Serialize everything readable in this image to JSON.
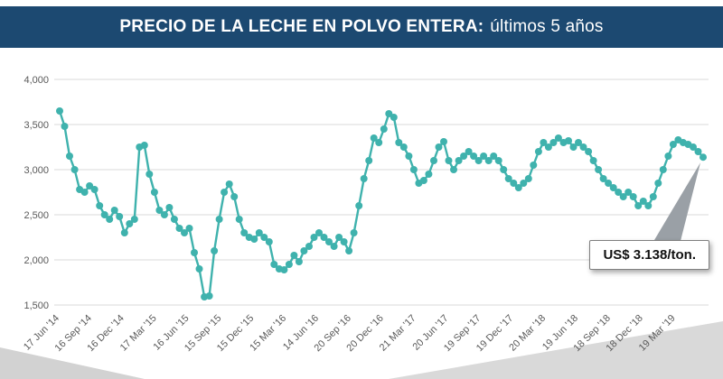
{
  "header": {
    "title_bold": "PRECIO DE LA LECHE EN POLVO ENTERA:",
    "title_light": "últimos 5 años"
  },
  "annotation": {
    "label": "US$ 3.138/ton."
  },
  "colors": {
    "banner": "#1c4971",
    "line": "#3fb2ad",
    "gridline": "#d9d9d9",
    "axis_text": "#595959",
    "arrow": "#9aa0a6"
  },
  "chart_data": {
    "type": "line",
    "title": "PRECIO DE LA LECHE EN POLVO ENTERA: últimos 5 años",
    "x_tick_labels": [
      "17 Jun '14",
      "16 Sep '14",
      "16 Dec '14",
      "17 Mar '15",
      "16 Jun '15",
      "15 Sep '15",
      "15 Dec '15",
      "15 Mar '16",
      "14 Jun '16",
      "20 Sep '16",
      "20 Dec '16",
      "21 Mar '17",
      "20 Jun '17",
      "19 Sep '17",
      "19 Dec '17",
      "20 Mar '18",
      "19 Jun '18",
      "18 Sep '18",
      "18 Dec '18",
      "19 Mar '19"
    ],
    "y_ticks": [
      1500,
      2000,
      2500,
      3000,
      3500,
      4000
    ],
    "y_tick_labels": [
      "1,500",
      "2,000",
      "2,500",
      "3,000",
      "3,500",
      "4,000"
    ],
    "ylim": [
      1500,
      4000
    ],
    "y_step": 500,
    "grid": true,
    "legend": "none",
    "line_color": "#3fb2ad",
    "points_per_x_label": 6.5,
    "values": [
      3650,
      3480,
      3150,
      3000,
      2780,
      2750,
      2820,
      2780,
      2600,
      2500,
      2450,
      2550,
      2480,
      2300,
      2400,
      2450,
      3250,
      3270,
      2950,
      2750,
      2550,
      2500,
      2580,
      2450,
      2350,
      2300,
      2350,
      2080,
      1900,
      1590,
      1600,
      2100,
      2450,
      2750,
      2840,
      2700,
      2450,
      2300,
      2250,
      2230,
      2300,
      2250,
      2200,
      1950,
      1900,
      1890,
      1950,
      2050,
      1980,
      2100,
      2150,
      2250,
      2300,
      2250,
      2200,
      2150,
      2250,
      2200,
      2100,
      2300,
      2600,
      2900,
      3100,
      3350,
      3300,
      3450,
      3620,
      3580,
      3300,
      3250,
      3150,
      3000,
      2850,
      2880,
      2950,
      3100,
      3250,
      3310,
      3100,
      3000,
      3100,
      3150,
      3200,
      3150,
      3100,
      3150,
      3100,
      3150,
      3100,
      3000,
      2900,
      2850,
      2800,
      2850,
      2900,
      3050,
      3200,
      3300,
      3250,
      3300,
      3350,
      3300,
      3320,
      3250,
      3300,
      3250,
      3200,
      3100,
      3000,
      2900,
      2850,
      2800,
      2750,
      2700,
      2750,
      2700,
      2600,
      2650,
      2600,
      2700,
      2850,
      3000,
      3150,
      3280,
      3330,
      3300,
      3280,
      3250,
      3200,
      3138
    ],
    "last_value": 3138,
    "last_value_label": "US$ 3.138/ton."
  }
}
